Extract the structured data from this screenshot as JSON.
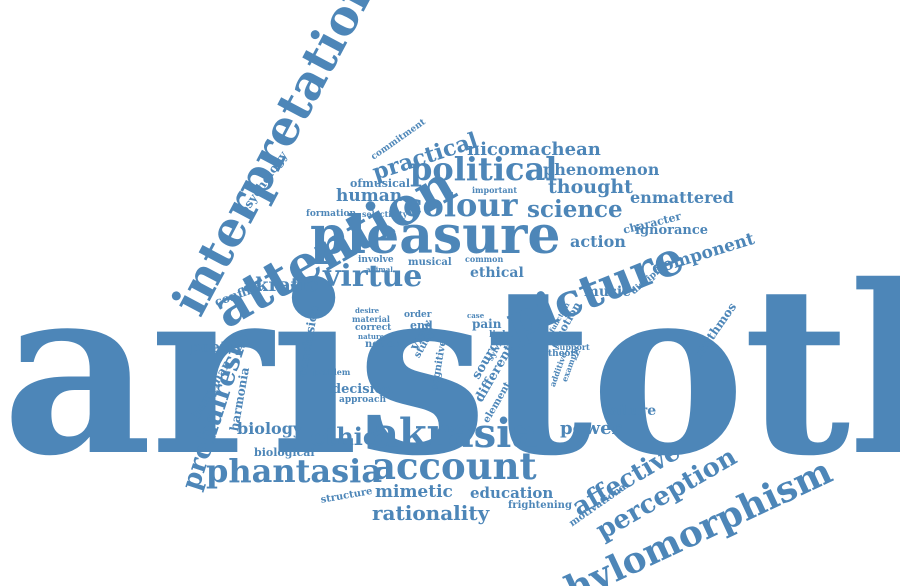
{
  "colors": {
    "word": "#4d86b8",
    "background": "#ffffff"
  },
  "words": [
    "aristotle",
    "interpretation",
    "attention",
    "pleasure",
    "akrasia",
    "picture",
    "hylomorphism",
    "phantasia",
    "account",
    "colour",
    "political",
    "virtue",
    "prohairesis",
    "perception",
    "affective",
    "practical",
    "science",
    "thought",
    "nicomachean",
    "phenomenon",
    "enmattered",
    "component",
    "action",
    "ignorance",
    "character",
    "human",
    "ofmusical",
    "psychology",
    "commitment",
    "formation",
    "selectivity",
    "important",
    "akratic",
    "conflict",
    "involve",
    "musical",
    "ethical",
    "common",
    "animal",
    "music",
    "discipline",
    "rhythmos",
    "poetry",
    "berryman",
    "harmonia",
    "conclusion",
    "problem",
    "decision",
    "approach",
    "biology",
    "ethic",
    "biological",
    "power",
    "failure",
    "structure",
    "mimetic",
    "education",
    "rationality",
    "frightening",
    "motivational",
    "desire",
    "material",
    "correct",
    "nature",
    "notion",
    "order",
    "end",
    "view",
    "study",
    "cognitive",
    "element",
    "different",
    "source",
    "case",
    "pain",
    "light",
    "emotion",
    "support",
    "theory",
    "function",
    "example",
    "additive",
    "sylvia"
  ]
}
